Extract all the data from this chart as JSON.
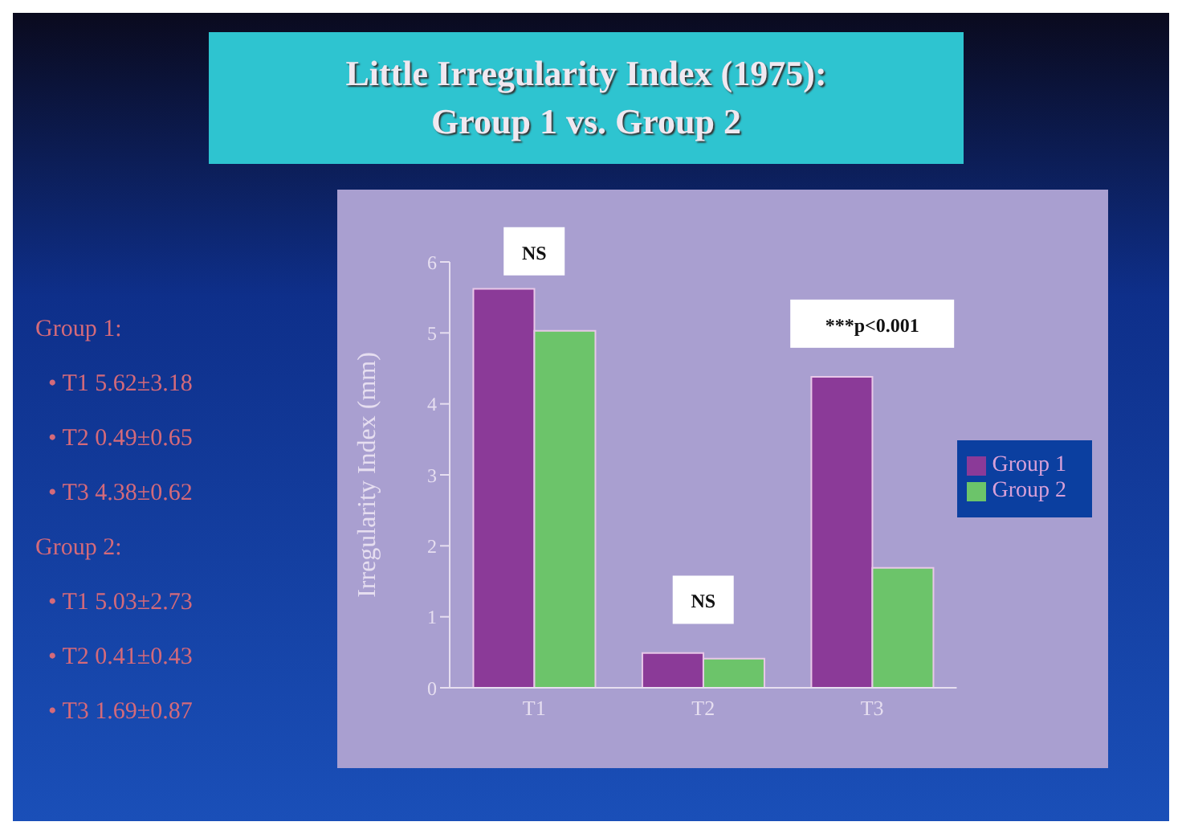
{
  "chart_data": {
    "type": "bar",
    "title": "Little Irregularity Index (1975):\nGroup 1 vs. Group 2",
    "ylabel": "Irregularity Index (mm)",
    "categories": [
      "T1",
      "T2",
      "T3"
    ],
    "series": [
      {
        "name": "Group 1",
        "color": "#8b3a98",
        "values": [
          5.62,
          0.49,
          4.38
        ]
      },
      {
        "name": "Group 2",
        "color": "#6cc46a",
        "values": [
          5.03,
          0.41,
          1.69
        ]
      }
    ],
    "ylim": [
      0,
      6
    ],
    "yticks": [
      0,
      1,
      2,
      3,
      4,
      5,
      6
    ],
    "legend": "right",
    "annotations": [
      "NS",
      "NS",
      "***p<0.001",
      "Group 1:",
      "• T1 5.62±3.18",
      "• T2 0.49±0.65",
      "• T3 4.38±0.62",
      "Group 2:",
      "• T1 5.03±2.73",
      "• T2 0.41±0.43",
      "• T3 1.69±0.87"
    ]
  }
}
